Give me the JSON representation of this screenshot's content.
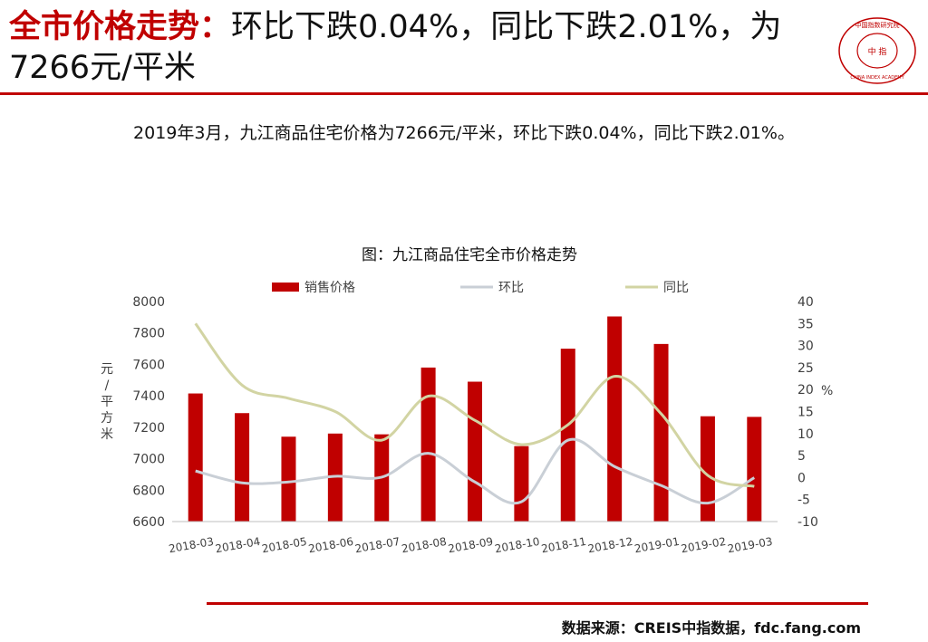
{
  "header": {
    "title_highlight": "全市价格走势：",
    "title_rest": "环比下跌0.04%，同比下跌2.01%，为7266元/平米"
  },
  "summary": "2019年3月，九江商品住宅价格为7266元/平米，环比下跌0.04%，同比下跌2.01%。",
  "logo": {
    "text_top": "中国指数研究院",
    "text_center": "中 指",
    "text_bottom": "CHINA INDEX ACADEMY",
    "color": "#c00000"
  },
  "chart_data": {
    "type": "bar",
    "title": "图：九江商品住宅全市价格走势",
    "categories": [
      "2018-03",
      "2018-04",
      "2018-05",
      "2018-06",
      "2018-07",
      "2018-08",
      "2018-09",
      "2018-10",
      "2018-11",
      "2018-12",
      "2019-01",
      "2019-02",
      "2019-03"
    ],
    "ylabel": "元/平方米",
    "y2label": "%",
    "ylim": [
      6600,
      8000
    ],
    "y2lim": [
      -10,
      40
    ],
    "yticks": [
      6600,
      6800,
      7000,
      7200,
      7400,
      7600,
      7800,
      8000
    ],
    "y2ticks": [
      -10,
      -5,
      0,
      5,
      10,
      15,
      20,
      25,
      30,
      35,
      40
    ],
    "legend_position": "top",
    "grid": false,
    "series": [
      {
        "name": "销售价格",
        "type": "bar",
        "axis": "left",
        "color": "#c00000",
        "values": [
          7415,
          7290,
          7140,
          7160,
          7155,
          7580,
          7490,
          7080,
          7700,
          7905,
          7730,
          7270,
          7266
        ]
      },
      {
        "name": "环比",
        "type": "line",
        "axis": "right",
        "color": "#c9cfd6",
        "values": [
          1.5,
          -1.2,
          -1.0,
          0.3,
          0.1,
          5.5,
          -1.0,
          -5.5,
          8.5,
          2.5,
          -1.8,
          -5.8,
          -0.04
        ]
      },
      {
        "name": "同比",
        "type": "line",
        "axis": "right",
        "color": "#d2d4a3",
        "values": [
          35,
          21,
          18,
          15,
          8.5,
          18.5,
          13,
          7.5,
          12,
          23,
          14.5,
          0.5,
          -2.01
        ]
      }
    ]
  },
  "footer": {
    "source": "数据来源：CREIS中指数据，fdc.fang.com"
  }
}
